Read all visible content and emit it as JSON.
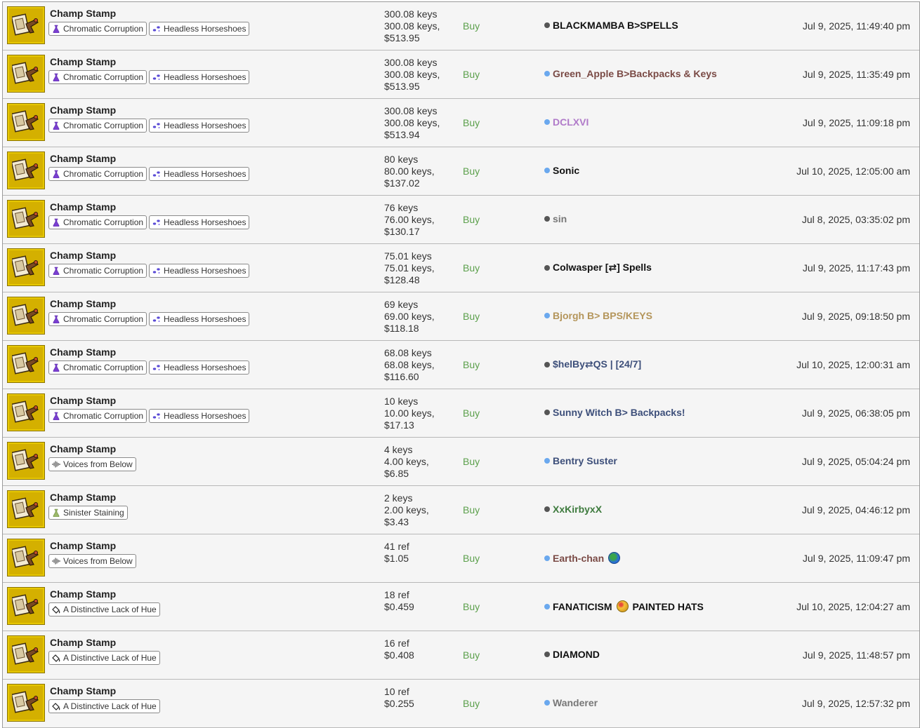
{
  "colors": {
    "buy": "#5ca04c",
    "thumb_bg": "#d4b000",
    "dot_gray": "#555555",
    "dot_blue": "#6aa8ee"
  },
  "rows": [
    {
      "item": "Champ Stamp",
      "tags": [
        {
          "icon": "chromatic-corruption-icon",
          "label": "Chromatic Corruption"
        },
        {
          "icon": "headless-horseshoes-icon",
          "label": "Headless Horseshoes"
        }
      ],
      "price": [
        "300.08 keys",
        "300.08 keys,",
        "$513.95"
      ],
      "action": "Buy",
      "user": "BLACKMAMBA B>SPELLS",
      "user_color": "#111111",
      "status": "gray",
      "date": "Jul 9, 2025, 11:49:40 pm"
    },
    {
      "item": "Champ Stamp",
      "tags": [
        {
          "icon": "chromatic-corruption-icon",
          "label": "Chromatic Corruption"
        },
        {
          "icon": "headless-horseshoes-icon",
          "label": "Headless Horseshoes"
        }
      ],
      "price": [
        "300.08 keys",
        "300.08 keys,",
        "$513.95"
      ],
      "action": "Buy",
      "user": "Green_Apple B>Backpacks & Keys",
      "user_color": "#7a4a45",
      "status": "blue",
      "date": "Jul 9, 2025, 11:35:49 pm"
    },
    {
      "item": "Champ Stamp",
      "tags": [
        {
          "icon": "chromatic-corruption-icon",
          "label": "Chromatic Corruption"
        },
        {
          "icon": "headless-horseshoes-icon",
          "label": "Headless Horseshoes"
        }
      ],
      "price": [
        "300.08 keys",
        "300.08 keys,",
        "$513.94"
      ],
      "action": "Buy",
      "user": "DCLXVI",
      "user_color": "#b07ac9",
      "status": "blue",
      "date": "Jul 9, 2025, 11:09:18 pm"
    },
    {
      "item": "Champ Stamp",
      "tags": [
        {
          "icon": "chromatic-corruption-icon",
          "label": "Chromatic Corruption"
        },
        {
          "icon": "headless-horseshoes-icon",
          "label": "Headless Horseshoes"
        }
      ],
      "price": [
        "80 keys",
        "80.00 keys,",
        "$137.02"
      ],
      "action": "Buy",
      "user": "Sonic",
      "user_color": "#111111",
      "status": "blue",
      "date": "Jul 10, 2025, 12:05:00 am"
    },
    {
      "item": "Champ Stamp",
      "tags": [
        {
          "icon": "chromatic-corruption-icon",
          "label": "Chromatic Corruption"
        },
        {
          "icon": "headless-horseshoes-icon",
          "label": "Headless Horseshoes"
        }
      ],
      "price": [
        "76 keys",
        "76.00 keys,",
        "$130.17"
      ],
      "action": "Buy",
      "user": "sin",
      "user_color": "#777777",
      "status": "gray",
      "date": "Jul 8, 2025, 03:35:02 pm"
    },
    {
      "item": "Champ Stamp",
      "tags": [
        {
          "icon": "chromatic-corruption-icon",
          "label": "Chromatic Corruption"
        },
        {
          "icon": "headless-horseshoes-icon",
          "label": "Headless Horseshoes"
        }
      ],
      "price": [
        "75.01 keys",
        "75.01 keys,",
        "$128.48"
      ],
      "action": "Buy",
      "user": "Colwasper [⇄] Spells",
      "user_color": "#111111",
      "status": "gray",
      "date": "Jul 9, 2025, 11:17:43 pm"
    },
    {
      "item": "Champ Stamp",
      "tags": [
        {
          "icon": "chromatic-corruption-icon",
          "label": "Chromatic Corruption"
        },
        {
          "icon": "headless-horseshoes-icon",
          "label": "Headless Horseshoes"
        }
      ],
      "price": [
        "69 keys",
        "69.00 keys,",
        "$118.18"
      ],
      "action": "Buy",
      "user": "Bjorgh B> BPS/KEYS",
      "user_color": "#b4955a",
      "status": "blue",
      "date": "Jul 9, 2025, 09:18:50 pm"
    },
    {
      "item": "Champ Stamp",
      "tags": [
        {
          "icon": "chromatic-corruption-icon",
          "label": "Chromatic Corruption"
        },
        {
          "icon": "headless-horseshoes-icon",
          "label": "Headless Horseshoes"
        }
      ],
      "price": [
        "68.08 keys",
        "68.08 keys,",
        "$116.60"
      ],
      "action": "Buy",
      "user": "$helBy⇄QS | [24/7]",
      "user_color": "#3d4f7a",
      "status": "gray",
      "date": "Jul 10, 2025, 12:00:31 am"
    },
    {
      "item": "Champ Stamp",
      "tags": [
        {
          "icon": "chromatic-corruption-icon",
          "label": "Chromatic Corruption"
        },
        {
          "icon": "headless-horseshoes-icon",
          "label": "Headless Horseshoes"
        }
      ],
      "price": [
        "10 keys",
        "10.00 keys,",
        "$17.13"
      ],
      "action": "Buy",
      "user": "Sunny Witch B> Backpacks!",
      "user_color": "#3d4f7a",
      "status": "gray",
      "date": "Jul 9, 2025, 06:38:05 pm"
    },
    {
      "item": "Champ Stamp",
      "tags": [
        {
          "icon": "voices-from-below-icon",
          "label": "Voices from Below"
        }
      ],
      "price": [
        "4 keys",
        "4.00 keys,",
        "$6.85"
      ],
      "action": "Buy",
      "user": "Bentry Suster",
      "user_color": "#3d4f7a",
      "status": "blue",
      "date": "Jul 9, 2025, 05:04:24 pm"
    },
    {
      "item": "Champ Stamp",
      "tags": [
        {
          "icon": "sinister-staining-icon",
          "label": "Sinister Staining"
        }
      ],
      "price": [
        "2 keys",
        "2.00 keys,",
        "$3.43"
      ],
      "action": "Buy",
      "user": "XxKirbyxX",
      "user_color": "#3d7a3d",
      "status": "gray",
      "date": "Jul 9, 2025, 04:46:12 pm"
    },
    {
      "item": "Champ Stamp",
      "tags": [
        {
          "icon": "voices-from-below-icon",
          "label": "Voices from Below"
        }
      ],
      "price": [
        "41 ref",
        "$1.05"
      ],
      "action": "Buy",
      "user": "Earth-chan",
      "user_color": "#7a4a45",
      "status": "blue",
      "emoji": "earth-globe-icon",
      "date": "Jul 9, 2025, 11:09:47 pm"
    },
    {
      "item": "Champ Stamp",
      "tags": [
        {
          "icon": "distinctive-lack-of-hue-icon",
          "label": "A Distinctive Lack of Hue"
        }
      ],
      "price": [
        "18 ref",
        "$0.459"
      ],
      "action": "Buy",
      "user": "FANATICISM",
      "user_suffix": "PAINTED HATS",
      "user_color": "#111111",
      "status": "blue",
      "emoji": "paint-palette-icon",
      "date": "Jul 10, 2025, 12:04:27 am"
    },
    {
      "item": "Champ Stamp",
      "tags": [
        {
          "icon": "distinctive-lack-of-hue-icon",
          "label": "A Distinctive Lack of Hue"
        }
      ],
      "price": [
        "16 ref",
        "$0.408"
      ],
      "action": "Buy",
      "user": "DIAMOND",
      "user_color": "#111111",
      "status": "gray",
      "date": "Jul 9, 2025, 11:48:57 pm"
    },
    {
      "item": "Champ Stamp",
      "tags": [
        {
          "icon": "distinctive-lack-of-hue-icon",
          "label": "A Distinctive Lack of Hue"
        }
      ],
      "price": [
        "10 ref",
        "$0.255"
      ],
      "action": "Buy",
      "user": "Wanderer",
      "user_color": "#777777",
      "status": "blue",
      "date": "Jul 9, 2025, 12:57:32 pm"
    }
  ]
}
